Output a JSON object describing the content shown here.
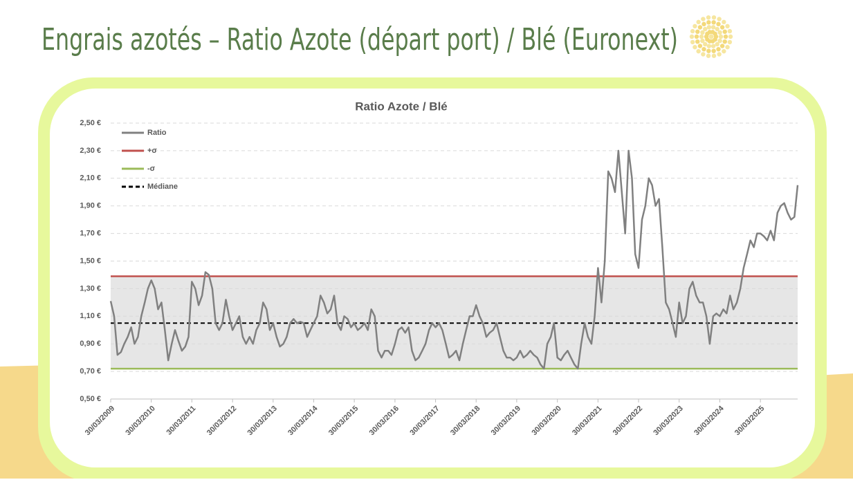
{
  "page_title": "Engrais azotés – Ratio Azote (départ port) / Blé (Euronext)",
  "chart_data": {
    "type": "line",
    "title": "Ratio Azote / Blé",
    "x": [
      "2009-03-30",
      "2009-04-30",
      "2009-05-30",
      "2009-06-30",
      "2009-07-30",
      "2009-08-30",
      "2009-09-30",
      "2009-10-30",
      "2009-11-30",
      "2009-12-30",
      "2010-01-30",
      "2010-02-28",
      "2010-03-30",
      "2010-04-30",
      "2010-05-30",
      "2010-06-30",
      "2010-07-30",
      "2010-08-30",
      "2010-09-30",
      "2010-10-30",
      "2010-11-30",
      "2010-12-30",
      "2011-01-30",
      "2011-02-28",
      "2011-03-30",
      "2011-04-30",
      "2011-05-30",
      "2011-06-30",
      "2011-07-30",
      "2011-08-30",
      "2011-09-30",
      "2011-10-30",
      "2011-11-30",
      "2011-12-30",
      "2012-01-30",
      "2012-02-28",
      "2012-03-30",
      "2012-04-30",
      "2012-05-30",
      "2012-06-30",
      "2012-07-30",
      "2012-08-30",
      "2012-09-30",
      "2012-10-30",
      "2012-11-30",
      "2012-12-30",
      "2013-01-30",
      "2013-02-28",
      "2013-03-30",
      "2013-04-30",
      "2013-05-30",
      "2013-06-30",
      "2013-07-30",
      "2013-08-30",
      "2013-09-30",
      "2013-10-30",
      "2013-11-30",
      "2013-12-30",
      "2014-01-30",
      "2014-02-28",
      "2014-03-30",
      "2014-04-30",
      "2014-05-30",
      "2014-06-30",
      "2014-07-30",
      "2014-08-30",
      "2014-09-30",
      "2014-10-30",
      "2014-11-30",
      "2014-12-30",
      "2015-01-30",
      "2015-02-28",
      "2015-03-30",
      "2015-04-30",
      "2015-05-30",
      "2015-06-30",
      "2015-07-30",
      "2015-08-30",
      "2015-09-30",
      "2015-10-30",
      "2015-11-30",
      "2015-12-30",
      "2016-01-30",
      "2016-02-28",
      "2016-03-30",
      "2016-04-30",
      "2016-05-30",
      "2016-06-30",
      "2016-07-30",
      "2016-08-30",
      "2016-09-30",
      "2016-10-30",
      "2016-11-30",
      "2016-12-30",
      "2017-01-30",
      "2017-02-28",
      "2017-03-30",
      "2017-04-30",
      "2017-05-30",
      "2017-06-30",
      "2017-07-30",
      "2017-08-30",
      "2017-09-30",
      "2017-10-30",
      "2017-11-30",
      "2017-12-30",
      "2018-01-30",
      "2018-02-28",
      "2018-03-30",
      "2018-04-30",
      "2018-05-30",
      "2018-06-30",
      "2018-07-30",
      "2018-08-30",
      "2018-09-30",
      "2018-10-30",
      "2018-11-30",
      "2018-12-30",
      "2019-01-30",
      "2019-02-28",
      "2019-03-30",
      "2019-04-30",
      "2019-05-30",
      "2019-06-30",
      "2019-07-30",
      "2019-08-30",
      "2019-09-30",
      "2019-10-30",
      "2019-11-30",
      "2019-12-30",
      "2020-01-30",
      "2020-02-28",
      "2020-03-30",
      "2020-04-30",
      "2020-05-30",
      "2020-06-30",
      "2020-07-30",
      "2020-08-30",
      "2020-09-30",
      "2020-10-30",
      "2020-11-30",
      "2020-12-30",
      "2021-01-30",
      "2021-02-28",
      "2021-03-30",
      "2021-04-30",
      "2021-05-30",
      "2021-06-30",
      "2021-07-30",
      "2021-08-30",
      "2021-09-30",
      "2021-10-30",
      "2021-11-30",
      "2021-12-30",
      "2022-01-30",
      "2022-02-28",
      "2022-03-30",
      "2022-04-30",
      "2022-05-30",
      "2022-06-30",
      "2022-07-30",
      "2022-08-30",
      "2022-09-30",
      "2022-10-30",
      "2022-11-30",
      "2022-12-30",
      "2023-01-30",
      "2023-02-28",
      "2023-03-30",
      "2023-04-30",
      "2023-05-30",
      "2023-06-30",
      "2023-07-30",
      "2023-08-30",
      "2023-09-30",
      "2023-10-30",
      "2023-11-30",
      "2023-12-30",
      "2024-01-30",
      "2024-02-28",
      "2024-03-30",
      "2024-04-30",
      "2024-05-30",
      "2024-06-30",
      "2024-07-30",
      "2024-08-30",
      "2024-09-30",
      "2024-10-30",
      "2024-11-30",
      "2024-12-30",
      "2025-01-30",
      "2025-02-28",
      "2025-03-30",
      "2025-04-30",
      "2025-05-30",
      "2025-06-30",
      "2025-07-30",
      "2025-08-30",
      "2025-09-30",
      "2025-10-30",
      "2025-11-30",
      "2025-12-30",
      "2026-01-30",
      "2026-02-28"
    ],
    "series": [
      {
        "name": "Ratio",
        "color": "#808080",
        "values": [
          1.21,
          1.1,
          0.82,
          0.84,
          0.9,
          0.95,
          1.02,
          0.9,
          0.95,
          1.1,
          1.2,
          1.3,
          1.36,
          1.3,
          1.15,
          1.2,
          1.0,
          0.78,
          0.9,
          1.0,
          0.92,
          0.85,
          0.88,
          0.95,
          1.35,
          1.3,
          1.18,
          1.25,
          1.42,
          1.4,
          1.3,
          1.05,
          1.0,
          1.05,
          1.22,
          1.1,
          1.0,
          1.05,
          1.1,
          0.95,
          0.9,
          0.95,
          0.9,
          1.0,
          1.05,
          1.2,
          1.15,
          1.0,
          1.05,
          0.95,
          0.88,
          0.9,
          0.95,
          1.05,
          1.08,
          1.05,
          1.06,
          1.05,
          0.95,
          1.0,
          1.05,
          1.1,
          1.25,
          1.2,
          1.12,
          1.15,
          1.25,
          1.05,
          1.0,
          1.1,
          1.08,
          1.02,
          1.05,
          1.0,
          1.02,
          1.05,
          1.0,
          1.15,
          1.1,
          0.85,
          0.8,
          0.85,
          0.85,
          0.82,
          0.9,
          1.0,
          1.02,
          0.98,
          1.02,
          0.85,
          0.78,
          0.8,
          0.85,
          0.9,
          1.0,
          1.05,
          1.02,
          1.05,
          1.0,
          0.9,
          0.8,
          0.82,
          0.85,
          0.78,
          0.9,
          1.0,
          1.1,
          1.1,
          1.18,
          1.1,
          1.05,
          0.95,
          0.98,
          1.0,
          1.05,
          0.95,
          0.85,
          0.8,
          0.8,
          0.78,
          0.8,
          0.85,
          0.8,
          0.82,
          0.85,
          0.82,
          0.8,
          0.75,
          0.72,
          0.9,
          0.95,
          1.05,
          0.8,
          0.78,
          0.82,
          0.85,
          0.8,
          0.75,
          0.72,
          0.9,
          1.05,
          0.95,
          0.9,
          1.1,
          1.45,
          1.2,
          1.5,
          2.15,
          2.1,
          2.0,
          2.3,
          2.0,
          1.7,
          2.3,
          2.1,
          1.55,
          1.45,
          1.8,
          1.9,
          2.1,
          2.05,
          1.9,
          1.95,
          1.6,
          1.2,
          1.15,
          1.05,
          0.95,
          1.2,
          1.05,
          1.1,
          1.3,
          1.35,
          1.25,
          1.2,
          1.2,
          1.1,
          0.9,
          1.1,
          1.12,
          1.1,
          1.15,
          1.12,
          1.25,
          1.15,
          1.2,
          1.3,
          1.45,
          1.55,
          1.65,
          1.6,
          1.7,
          1.7,
          1.68,
          1.65,
          1.72,
          1.65,
          1.85,
          1.9,
          1.92,
          1.85,
          1.8,
          1.82,
          2.05
        ]
      }
    ],
    "reference_lines": [
      {
        "name": "+σ",
        "color": "#c0504d",
        "value": 1.39
      },
      {
        "name": "-σ",
        "color": "#9bbb59",
        "value": 0.72
      },
      {
        "name": "Médiane",
        "color": "#000000",
        "value": 1.05,
        "dashed": true
      }
    ],
    "xlim": [
      "2009-03-30",
      "2026-02-28"
    ],
    "xticks": [
      {
        "value": "2009-03-30",
        "label": "30/03/2009"
      },
      {
        "value": "2010-03-30",
        "label": "30/03/2010"
      },
      {
        "value": "2011-03-30",
        "label": "30/03/2011"
      },
      {
        "value": "2012-03-30",
        "label": "30/03/2012"
      },
      {
        "value": "2013-03-30",
        "label": "30/03/2013"
      },
      {
        "value": "2014-03-30",
        "label": "30/03/2014"
      },
      {
        "value": "2015-03-30",
        "label": "30/03/2015"
      },
      {
        "value": "2016-03-30",
        "label": "30/03/2016"
      },
      {
        "value": "2017-03-30",
        "label": "30/03/2017"
      },
      {
        "value": "2018-03-30",
        "label": "30/03/2018"
      },
      {
        "value": "2019-03-30",
        "label": "30/03/2019"
      },
      {
        "value": "2020-03-30",
        "label": "30/03/2020"
      },
      {
        "value": "2021-03-30",
        "label": "30/03/2021"
      },
      {
        "value": "2022-03-30",
        "label": "30/03/2022"
      },
      {
        "value": "2023-03-30",
        "label": "30/03/2023"
      },
      {
        "value": "2024-03-30",
        "label": "30/03/2024"
      },
      {
        "value": "2025-03-30",
        "label": "30/03/2025"
      }
    ],
    "ylim": [
      0.5,
      2.5
    ],
    "yticks": [
      {
        "value": 0.5,
        "label": "0,50 €"
      },
      {
        "value": 0.7,
        "label": "0,70 €"
      },
      {
        "value": 0.9,
        "label": "0,90 €"
      },
      {
        "value": 1.1,
        "label": "1,10 €"
      },
      {
        "value": 1.3,
        "label": "1,30 €"
      },
      {
        "value": 1.5,
        "label": "1,50 €"
      },
      {
        "value": 1.7,
        "label": "1,70 €"
      },
      {
        "value": 1.9,
        "label": "1,90 €"
      },
      {
        "value": 2.1,
        "label": "2,10 €"
      },
      {
        "value": 2.3,
        "label": "2,30 €"
      },
      {
        "value": 2.5,
        "label": "2,50 €"
      }
    ],
    "grid": true,
    "legend": "top-left"
  }
}
